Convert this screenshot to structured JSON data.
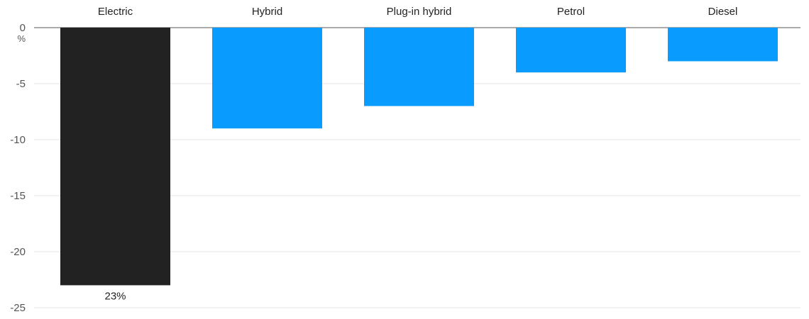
{
  "chart_data": {
    "type": "bar",
    "categories": [
      "Electric",
      "Hybrid",
      "Plug-in hybrid",
      "Petrol",
      "Diesel"
    ],
    "values": [
      -23,
      -9,
      -7,
      -4,
      -3
    ],
    "data_labels": [
      "23%",
      "",
      "",
      "",
      ""
    ],
    "y_unit": "%",
    "y_ticks": [
      0,
      -5,
      -10,
      -15,
      -20,
      -25
    ],
    "y_tick_labels": [
      "0",
      "-5",
      "-10",
      "-15",
      "-20",
      "-25"
    ],
    "ylim": [
      -25,
      0
    ],
    "grid": true,
    "category_labels_position": "top",
    "colors": {
      "highlight": "#222222",
      "default": "#0a9bff",
      "grid": "#e6e6e6",
      "axis": "#555555"
    },
    "highlight_index": 0
  }
}
